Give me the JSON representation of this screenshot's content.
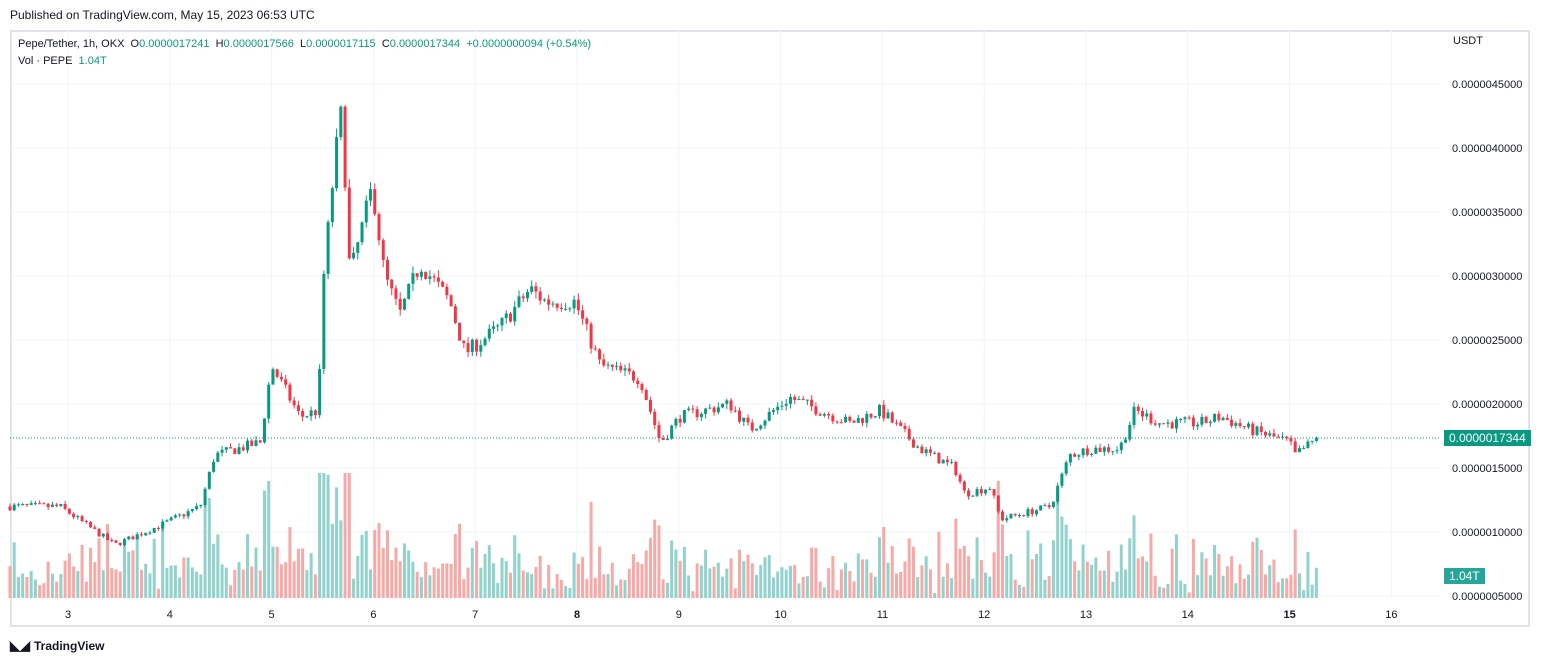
{
  "published": "Published on TradingView.com, May 15, 2023 06:53 UTC",
  "legend": {
    "symbol": "Pepe/Tether, 1h, OKX",
    "o_label": "O",
    "o": "0.0000017241",
    "h_label": "H",
    "h": "0.0000017566",
    "l_label": "L",
    "l": "0.0000017115",
    "c_label": "C",
    "c": "0.0000017344",
    "change": "+0.0000000094 (+0.54%)",
    "vol_label": "Vol · PEPE",
    "vol": "1.04T"
  },
  "currency": "USDT",
  "last_price_label": "0.0000017344",
  "last_volume_label": "1.04T",
  "brand": "TradingView",
  "colors": {
    "up": "#089981",
    "down": "#F23645",
    "vol_up": "#92D2CC",
    "vol_down": "#F7A9A7"
  },
  "chart_data": {
    "type": "candlestick",
    "title": "Pepe/Tether, 1h, OKX",
    "price_unit": "1e-6 USDT",
    "y_ticks": [
      "0.0000045000",
      "0.0000040000",
      "0.0000035000",
      "0.0000030000",
      "0.0000025000",
      "0.0000020000",
      "0.0000015000",
      "0.0000010000",
      "0.0000005000"
    ],
    "y_tick_values": [
      4.5,
      4.0,
      3.5,
      3.0,
      2.5,
      2.0,
      1.5,
      1.0,
      0.5
    ],
    "x_ticks": [
      "3",
      "4",
      "5",
      "6",
      "7",
      "8",
      "9",
      "10",
      "11",
      "12",
      "13",
      "14",
      "15",
      "16"
    ],
    "x_tick_days": [
      3,
      4,
      5,
      6,
      7,
      8,
      9,
      10,
      11,
      12,
      13,
      14,
      15,
      16
    ],
    "bold_x_ticks": [
      "8",
      "15"
    ],
    "approx_close_path_day_price": [
      [
        2.43,
        1.2
      ],
      [
        2.92,
        1.2
      ],
      [
        3.46,
        0.9
      ],
      [
        3.9,
        1.05
      ],
      [
        4.3,
        1.2
      ],
      [
        4.44,
        1.6
      ],
      [
        4.89,
        1.7
      ],
      [
        5.0,
        2.3
      ],
      [
        5.28,
        1.9
      ],
      [
        5.46,
        1.95
      ],
      [
        5.5,
        2.9
      ],
      [
        5.62,
        3.9
      ],
      [
        5.69,
        4.3
      ],
      [
        5.77,
        3.0
      ],
      [
        5.99,
        3.7
      ],
      [
        6.11,
        3.0
      ],
      [
        6.26,
        2.7
      ],
      [
        6.46,
        3.1
      ],
      [
        6.75,
        2.8
      ],
      [
        6.9,
        2.4
      ],
      [
        7.24,
        2.6
      ],
      [
        7.54,
        2.9
      ],
      [
        7.69,
        2.8
      ],
      [
        7.98,
        2.8
      ],
      [
        8.23,
        2.3
      ],
      [
        8.62,
        2.2
      ],
      [
        8.82,
        1.7
      ],
      [
        9.01,
        1.9
      ],
      [
        9.5,
        2.0
      ],
      [
        9.7,
        1.8
      ],
      [
        10.09,
        2.05
      ],
      [
        10.68,
        1.85
      ],
      [
        10.98,
        1.95
      ],
      [
        11.37,
        1.65
      ],
      [
        11.71,
        1.5
      ],
      [
        11.81,
        1.3
      ],
      [
        12.06,
        1.35
      ],
      [
        12.16,
        1.1
      ],
      [
        12.65,
        1.2
      ],
      [
        12.84,
        1.6
      ],
      [
        13.04,
        1.65
      ],
      [
        13.33,
        1.65
      ],
      [
        13.48,
        1.95
      ],
      [
        13.73,
        1.85
      ],
      [
        14.12,
        1.85
      ],
      [
        14.32,
        1.9
      ],
      [
        14.61,
        1.8
      ],
      [
        15.0,
        1.7
      ],
      [
        15.05,
        1.6
      ],
      [
        15.28,
        1.7344
      ]
    ],
    "last_close": 1.7344
  }
}
